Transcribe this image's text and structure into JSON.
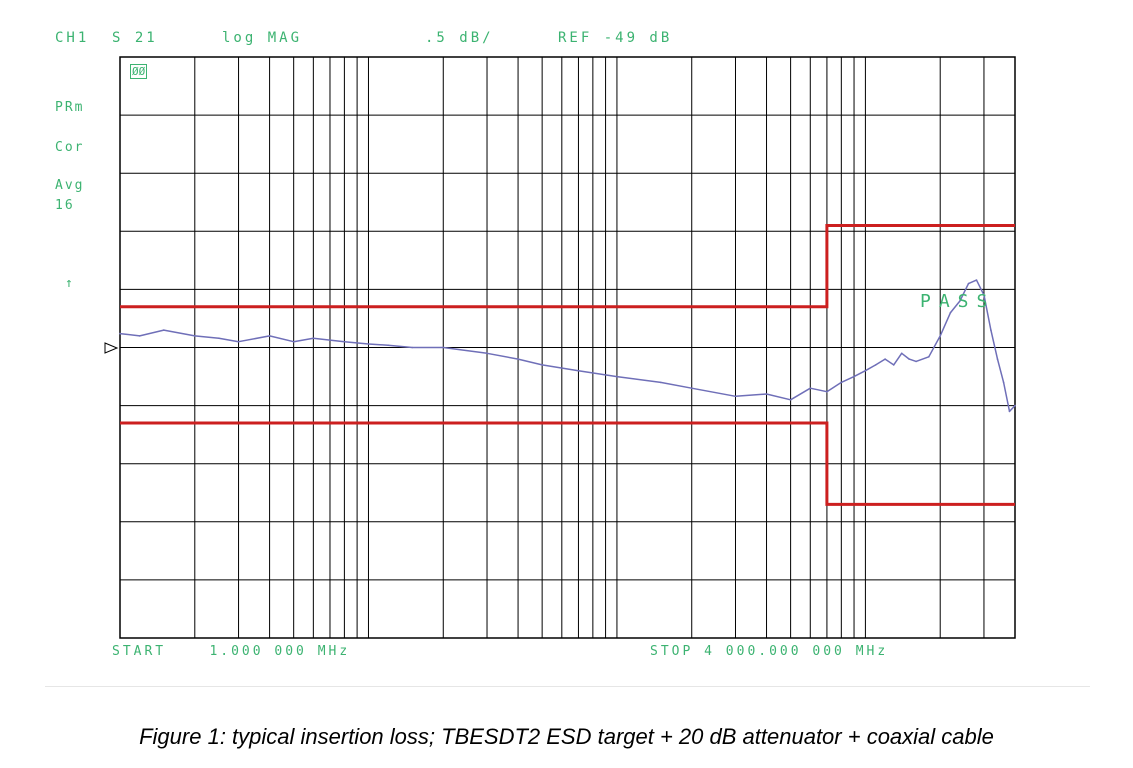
{
  "header": {
    "channel": "CH1",
    "param": "S 21",
    "format": "log MAG",
    "scale": ".5 dB/",
    "ref": "REF -49 dB"
  },
  "side_labels": {
    "marker_box": "ØØ",
    "prm": "PRm",
    "cor": "Cor",
    "avg": "Avg",
    "avg_count": "16",
    "arrow": "↑"
  },
  "pass_label": "PASS",
  "footer": {
    "start": "START    1.000 000 MHz",
    "stop": "STOP 4 000.000 000 MHz"
  },
  "caption": "Figure 1: typical insertion loss; TBESDT2 ESD target + 20 dB attenuator + coaxial cable",
  "colors": {
    "label_green": "#3cb371",
    "trace": "#6f6fb8",
    "limit": "#cc1f1f",
    "grid": "#000000"
  },
  "chart_data": {
    "type": "line",
    "x_scale": "log",
    "xlim_mhz": [
      1,
      4000
    ],
    "ylim_db": [
      -51.5,
      -46.5
    ],
    "ref_db": -49,
    "scale_db_per_div": 0.5,
    "grid": true,
    "series": [
      {
        "x": [
          1,
          1.2,
          1.5,
          2,
          2.5,
          3,
          4,
          5,
          6,
          8,
          10,
          12,
          15,
          20,
          30,
          40,
          50,
          70,
          100,
          150,
          200,
          300,
          400,
          500,
          600,
          700,
          800,
          900,
          1000,
          1100,
          1200,
          1300,
          1400,
          1500,
          1600,
          1800,
          2000,
          2200,
          2400,
          2600,
          2800,
          3000,
          3200,
          3400,
          3600,
          3800,
          4000
        ],
        "y": [
          -48.88,
          -48.9,
          -48.85,
          -48.9,
          -48.92,
          -48.95,
          -48.9,
          -48.95,
          -48.92,
          -48.95,
          -48.97,
          -48.98,
          -49.0,
          -49.0,
          -49.05,
          -49.1,
          -49.15,
          -49.2,
          -49.25,
          -49.3,
          -49.35,
          -49.42,
          -49.4,
          -49.45,
          -49.35,
          -49.38,
          -49.3,
          -49.25,
          -49.2,
          -49.15,
          -49.1,
          -49.15,
          -49.05,
          -49.1,
          -49.12,
          -49.08,
          -48.9,
          -48.7,
          -48.6,
          -48.45,
          -48.42,
          -48.55,
          -48.85,
          -49.1,
          -49.3,
          -49.55,
          -49.5
        ]
      }
    ],
    "limit_lines": {
      "upper": [
        [
          1,
          -48.65
        ],
        [
          700,
          -48.65
        ],
        [
          700,
          -47.95
        ],
        [
          4000,
          -47.95
        ]
      ],
      "lower": [
        [
          1,
          -49.65
        ],
        [
          700,
          -49.65
        ],
        [
          700,
          -50.35
        ],
        [
          4000,
          -50.35
        ]
      ]
    }
  }
}
